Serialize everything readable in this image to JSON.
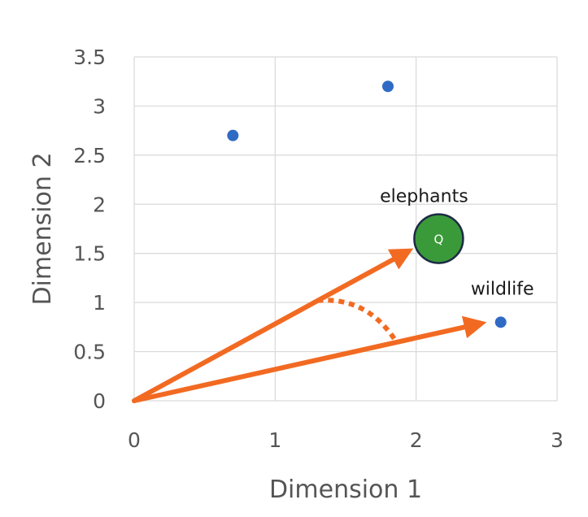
{
  "chart_data": {
    "type": "scatter",
    "title": "",
    "xlabel": "Dimension 1",
    "ylabel": "Dimension 2",
    "xlim": [
      0,
      3
    ],
    "ylim": [
      0,
      3.5
    ],
    "x_ticks": [
      "0",
      "1",
      "2",
      "3"
    ],
    "y_ticks": [
      "0",
      "0.5",
      "1",
      "1.5",
      "2",
      "2.5",
      "3",
      "3.5"
    ],
    "grid": true,
    "points": [
      {
        "x": 0.7,
        "y": 2.7,
        "label": ""
      },
      {
        "x": 1.8,
        "y": 3.2,
        "label": ""
      },
      {
        "x": 2.6,
        "y": 0.8,
        "label": "wildlife"
      }
    ],
    "query_point": {
      "x": 2.16,
      "y": 1.65,
      "label": "elephants",
      "marker_text": "Q"
    },
    "vectors": [
      {
        "from": [
          0,
          0
        ],
        "to": [
          1.98,
          1.55
        ]
      },
      {
        "from": [
          0,
          0
        ],
        "to": [
          2.5,
          0.8
        ]
      }
    ],
    "angle_arc": {
      "from": [
        1.3,
        1.02
      ],
      "to": [
        1.85,
        0.62
      ]
    },
    "colors": {
      "point": "#2f6bc4",
      "query_fill": "#3a9a3a",
      "query_stroke": "#1d2a44",
      "vector": "#f26a22",
      "grid": "#d9d9d9"
    }
  }
}
